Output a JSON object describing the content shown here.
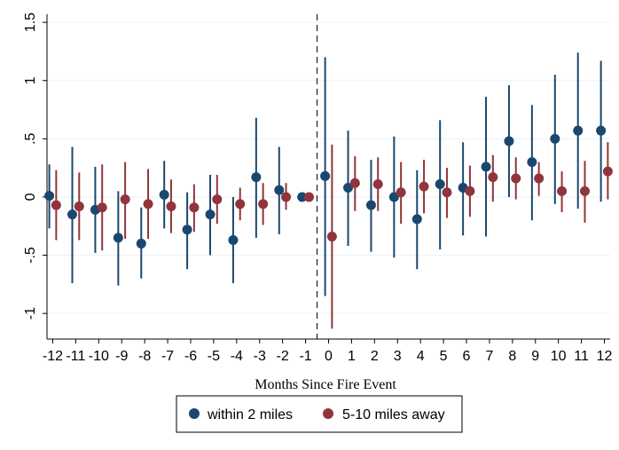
{
  "chart_data": {
    "type": "scatter",
    "subtype": "coefficient-plot-with-confidence-intervals",
    "xlabel": "Months Since Fire Event",
    "ylabel": "",
    "x_ticks": [
      -12,
      -11,
      -10,
      -9,
      -8,
      -7,
      -6,
      -5,
      -4,
      -3,
      -2,
      -1,
      0,
      1,
      2,
      3,
      4,
      5,
      6,
      7,
      8,
      9,
      10,
      11,
      12
    ],
    "y_ticks": [
      -1,
      -0.5,
      0,
      0.5,
      1,
      1.5
    ],
    "y_tick_labels": [
      "-1",
      "-.5",
      "0",
      ".5",
      "1",
      "1.5"
    ],
    "xlim": [
      -12.25,
      12.25
    ],
    "ylim": [
      -1.22,
      1.57
    ],
    "grid": "horizontal",
    "reference_line": {
      "x": -0.5,
      "style": "dashed"
    },
    "legend_position": "bottom",
    "series": [
      {
        "name": "within 2 miles",
        "color": "#1a476f",
        "offset": -0.15,
        "points": [
          {
            "x": -12,
            "y": 0.01,
            "lo": -0.27,
            "hi": 0.28
          },
          {
            "x": -11,
            "y": -0.15,
            "lo": -0.74,
            "hi": 0.43
          },
          {
            "x": -10,
            "y": -0.11,
            "lo": -0.48,
            "hi": 0.26
          },
          {
            "x": -9,
            "y": -0.35,
            "lo": -0.76,
            "hi": 0.05
          },
          {
            "x": -8,
            "y": -0.4,
            "lo": -0.7,
            "hi": -0.09
          },
          {
            "x": -7,
            "y": 0.02,
            "lo": -0.27,
            "hi": 0.31
          },
          {
            "x": -6,
            "y": -0.28,
            "lo": -0.62,
            "hi": 0.04
          },
          {
            "x": -5,
            "y": -0.15,
            "lo": -0.5,
            "hi": 0.19
          },
          {
            "x": -4,
            "y": -0.37,
            "lo": -0.74,
            "hi": 0.0
          },
          {
            "x": -3,
            "y": 0.17,
            "lo": -0.35,
            "hi": 0.68
          },
          {
            "x": -2,
            "y": 0.06,
            "lo": -0.32,
            "hi": 0.43
          },
          {
            "x": -1,
            "y": 0.0,
            "lo": 0.0,
            "hi": 0.0
          },
          {
            "x": 0,
            "y": 0.18,
            "lo": -0.85,
            "hi": 1.2
          },
          {
            "x": 1,
            "y": 0.08,
            "lo": -0.42,
            "hi": 0.57
          },
          {
            "x": 2,
            "y": -0.07,
            "lo": -0.47,
            "hi": 0.32
          },
          {
            "x": 3,
            "y": 0.0,
            "lo": -0.52,
            "hi": 0.52
          },
          {
            "x": 4,
            "y": -0.19,
            "lo": -0.62,
            "hi": 0.23
          },
          {
            "x": 5,
            "y": 0.11,
            "lo": -0.45,
            "hi": 0.66
          },
          {
            "x": 6,
            "y": 0.08,
            "lo": -0.33,
            "hi": 0.47
          },
          {
            "x": 7,
            "y": 0.26,
            "lo": -0.34,
            "hi": 0.86
          },
          {
            "x": 8,
            "y": 0.48,
            "lo": 0.0,
            "hi": 0.96
          },
          {
            "x": 9,
            "y": 0.3,
            "lo": -0.2,
            "hi": 0.79
          },
          {
            "x": 10,
            "y": 0.5,
            "lo": -0.06,
            "hi": 1.05
          },
          {
            "x": 11,
            "y": 0.57,
            "lo": -0.1,
            "hi": 1.24
          },
          {
            "x": 12,
            "y": 0.57,
            "lo": -0.04,
            "hi": 1.17
          }
        ]
      },
      {
        "name": "5-10 miles away",
        "color": "#90353b",
        "offset": 0.15,
        "points": [
          {
            "x": -12,
            "y": -0.07,
            "lo": -0.37,
            "hi": 0.23
          },
          {
            "x": -11,
            "y": -0.08,
            "lo": -0.37,
            "hi": 0.21
          },
          {
            "x": -10,
            "y": -0.09,
            "lo": -0.46,
            "hi": 0.28
          },
          {
            "x": -9,
            "y": -0.02,
            "lo": -0.36,
            "hi": 0.3
          },
          {
            "x": -8,
            "y": -0.06,
            "lo": -0.36,
            "hi": 0.24
          },
          {
            "x": -7,
            "y": -0.08,
            "lo": -0.31,
            "hi": 0.15
          },
          {
            "x": -6,
            "y": -0.09,
            "lo": -0.3,
            "hi": 0.11
          },
          {
            "x": -5,
            "y": -0.02,
            "lo": -0.23,
            "hi": 0.19
          },
          {
            "x": -4,
            "y": -0.06,
            "lo": -0.2,
            "hi": 0.08
          },
          {
            "x": -3,
            "y": -0.06,
            "lo": -0.24,
            "hi": 0.12
          },
          {
            "x": -2,
            "y": 0.0,
            "lo": -0.11,
            "hi": 0.12
          },
          {
            "x": -1,
            "y": 0.0,
            "lo": 0.0,
            "hi": 0.0
          },
          {
            "x": 0,
            "y": -0.34,
            "lo": -1.13,
            "hi": 0.45
          },
          {
            "x": 1,
            "y": 0.12,
            "lo": -0.12,
            "hi": 0.35
          },
          {
            "x": 2,
            "y": 0.11,
            "lo": -0.12,
            "hi": 0.34
          },
          {
            "x": 3,
            "y": 0.04,
            "lo": -0.23,
            "hi": 0.3
          },
          {
            "x": 4,
            "y": 0.09,
            "lo": -0.14,
            "hi": 0.32
          },
          {
            "x": 5,
            "y": 0.04,
            "lo": -0.18,
            "hi": 0.25
          },
          {
            "x": 6,
            "y": 0.05,
            "lo": -0.17,
            "hi": 0.27
          },
          {
            "x": 7,
            "y": 0.17,
            "lo": -0.04,
            "hi": 0.36
          },
          {
            "x": 8,
            "y": 0.16,
            "lo": -0.02,
            "hi": 0.34
          },
          {
            "x": 9,
            "y": 0.16,
            "lo": 0.01,
            "hi": 0.3
          },
          {
            "x": 10,
            "y": 0.05,
            "lo": -0.13,
            "hi": 0.22
          },
          {
            "x": 11,
            "y": 0.05,
            "lo": -0.22,
            "hi": 0.31
          },
          {
            "x": 12,
            "y": 0.22,
            "lo": -0.02,
            "hi": 0.47
          }
        ]
      }
    ]
  }
}
